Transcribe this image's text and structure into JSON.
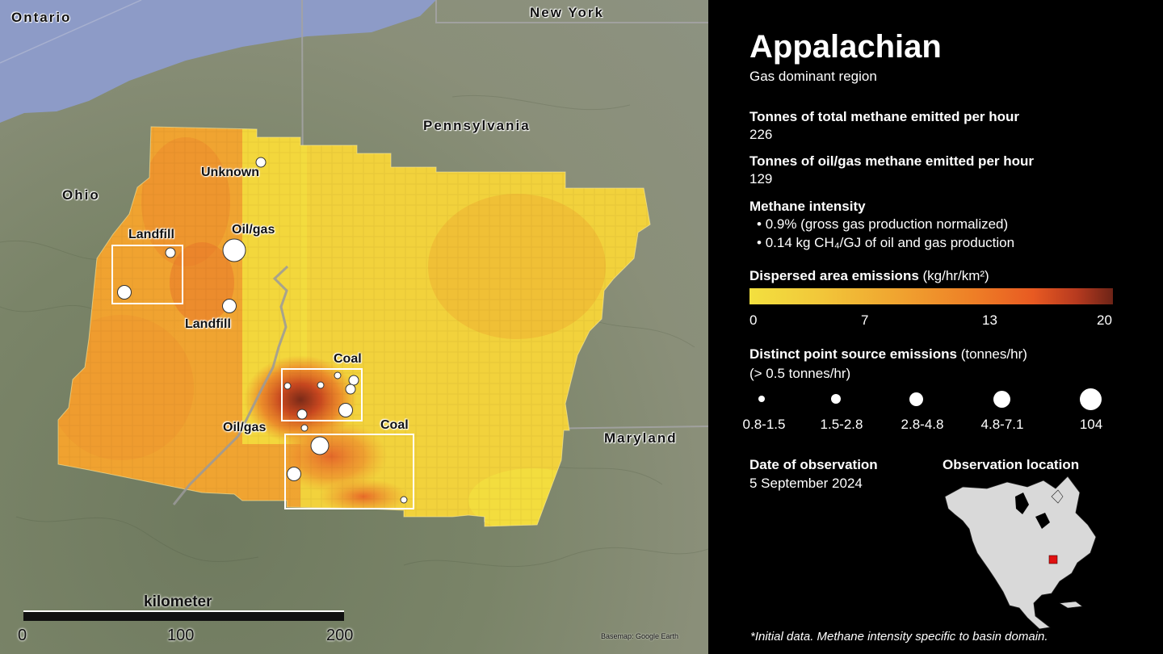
{
  "map": {
    "places": {
      "ontario": "Ontario",
      "new_york": "New York",
      "pennsylvania": "Pennsylvania",
      "ohio": "Ohio",
      "maryland": "Maryland"
    },
    "sources": [
      {
        "label": "Unknown"
      },
      {
        "label": "Oil/gas"
      },
      {
        "label": "Landfill"
      },
      {
        "label": "Landfill"
      },
      {
        "label": "Coal"
      },
      {
        "label": "Oil/gas"
      },
      {
        "label": "Coal"
      }
    ],
    "scale": {
      "title": "kilometer",
      "ticks": [
        "0",
        "100",
        "200"
      ]
    },
    "credit": "Basemap: Google Earth",
    "colors": {
      "water": "#8d9bc7",
      "low": "#f3e03f",
      "high": "#6d2417"
    }
  },
  "panel": {
    "title": "Appalachian",
    "subtitle": "Gas dominant region",
    "total_label": "Tonnes of total methane emitted per hour",
    "total_value": "226",
    "oilgas_label": "Tonnes of oil/gas methane emitted per hour",
    "oilgas_value": "129",
    "intensity_label": "Methane intensity",
    "intensity_items": [
      "0.9% (gross gas production normalized)",
      "0.14 kg CH₄/GJ of oil and gas production"
    ],
    "dispersed_label": "Dispersed area emissions",
    "dispersed_unit": "(kg/hr/km²)",
    "colorbar_ticks": [
      "0",
      "7",
      "13",
      "20"
    ],
    "point_label": "Distinct point source emissions",
    "point_unit": "(tonnes/hr)",
    "point_threshold": "(> 0.5 tonnes/hr)",
    "point_sizes": [
      "0.8-1.5",
      "1.5-2.8",
      "2.8-4.8",
      "4.8-7.1",
      "104"
    ],
    "date_label": "Date of observation",
    "date_value": "5 September 2024",
    "location_label": "Observation location",
    "footnote": "*Initial data. Methane intensity specific to basin domain."
  }
}
